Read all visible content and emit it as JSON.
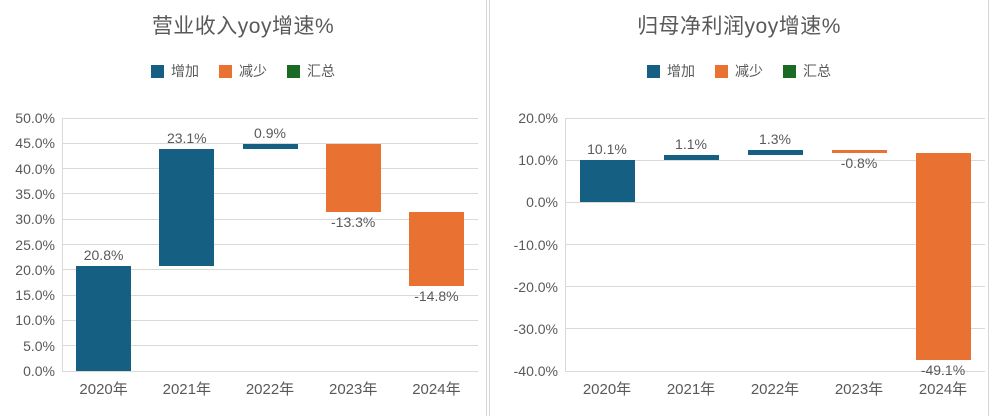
{
  "colors": {
    "increase": "#156082",
    "decrease": "#E97132",
    "total": "#196B24",
    "text": "#595959",
    "gridline": "#D9D9D9",
    "background": "#FFFFFF"
  },
  "legend": {
    "items": [
      {
        "label": "增加",
        "color": "#156082"
      },
      {
        "label": "减少",
        "color": "#E97132"
      },
      {
        "label": "汇总",
        "color": "#196B24"
      }
    ]
  },
  "chart_data": [
    {
      "type": "bar",
      "subtype": "waterfall",
      "title": "营业收入yoy增速%",
      "categories": [
        "2020年",
        "2021年",
        "2022年",
        "2023年",
        "2024年"
      ],
      "values": [
        20.8,
        23.1,
        0.9,
        -13.3,
        -14.8
      ],
      "data_labels": [
        "20.8%",
        "23.1%",
        "0.9%",
        "-13.3%",
        "-14.8%"
      ],
      "cumulative": [
        20.8,
        43.9,
        44.8,
        31.5,
        16.7
      ],
      "ylim": [
        0,
        50
      ],
      "ytick_step": 5,
      "ytick_labels": [
        "50.0%",
        "45.0%",
        "40.0%",
        "35.0%",
        "30.0%",
        "25.0%",
        "20.0%",
        "15.0%",
        "10.0%",
        "5.0%",
        "0.0%"
      ],
      "legend_entries": [
        "增加",
        "减少",
        "汇总"
      ],
      "legend_position": "top",
      "grid": true,
      "xlabel": "",
      "ylabel": ""
    },
    {
      "type": "bar",
      "subtype": "waterfall",
      "title": "归母净利润yoy增速%",
      "categories": [
        "2020年",
        "2021年",
        "2022年",
        "2023年",
        "2024年"
      ],
      "values": [
        10.1,
        1.1,
        1.3,
        -0.8,
        -49.1
      ],
      "data_labels": [
        "10.1%",
        "1.1%",
        "1.3%",
        "-0.8%",
        "-49.1%"
      ],
      "cumulative": [
        10.1,
        11.2,
        12.5,
        11.7,
        -37.4
      ],
      "ylim": [
        -40,
        20
      ],
      "ytick_step": 10,
      "ytick_labels": [
        "20.0%",
        "10.0%",
        "0.0%",
        "-10.0%",
        "-20.0%",
        "-30.0%",
        "-40.0%"
      ],
      "legend_entries": [
        "增加",
        "减少",
        "汇总"
      ],
      "legend_position": "top",
      "grid": true,
      "xlabel": "",
      "ylabel": ""
    }
  ]
}
